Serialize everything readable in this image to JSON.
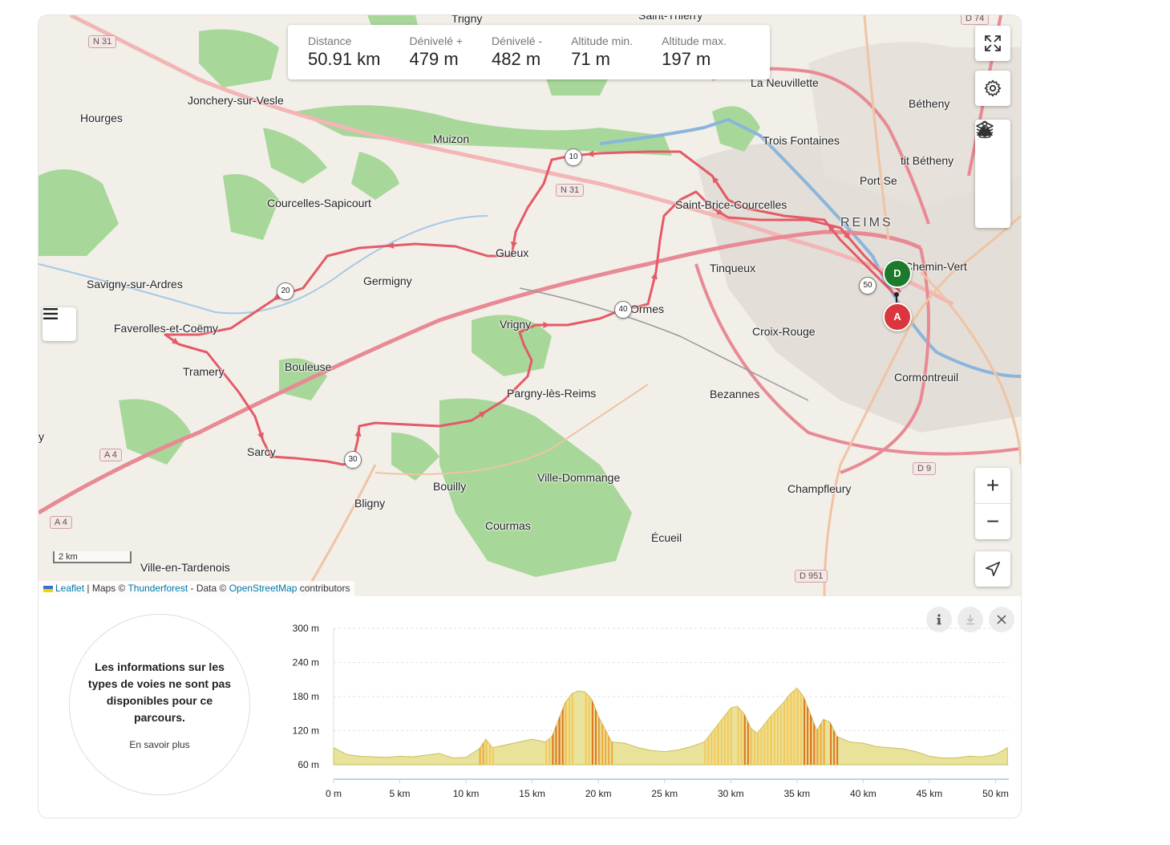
{
  "stats": [
    {
      "label": "Distance",
      "value": "50.91 km"
    },
    {
      "label": "Dénivelé +",
      "value": "479 m"
    },
    {
      "label": "Dénivelé -",
      "value": "482 m"
    },
    {
      "label": "Altitude min.",
      "value": "71 m"
    },
    {
      "label": "Altitude max.",
      "value": "197 m"
    }
  ],
  "map": {
    "places": [
      {
        "name": "Trigny"
      },
      {
        "name": "Saint-Thierry"
      },
      {
        "name": "Jonchery-sur-Vesle"
      },
      {
        "name": "Hourges"
      },
      {
        "name": "Muizon"
      },
      {
        "name": "La Neuvillette"
      },
      {
        "name": "Bétheny"
      },
      {
        "name": "Trois Fontaines"
      },
      {
        "name": "tit Bétheny"
      },
      {
        "name": "Port Se"
      },
      {
        "name": "Courcelles-Sapicourt"
      },
      {
        "name": "Saint-Brice-Courcelles"
      },
      {
        "name": "REIMS"
      },
      {
        "name": "Gueux"
      },
      {
        "name": "Tinqueux"
      },
      {
        "name": "Chemin-Vert"
      },
      {
        "name": "Germigny"
      },
      {
        "name": "Savigny-sur-Ardres"
      },
      {
        "name": "Ormes"
      },
      {
        "name": "Faverolles-et-Coëmy"
      },
      {
        "name": "Vrigny"
      },
      {
        "name": "Croix-Rouge"
      },
      {
        "name": "Tramery"
      },
      {
        "name": "Bouleuse"
      },
      {
        "name": "Cormontreuil"
      },
      {
        "name": "Pargny-lès-Reims"
      },
      {
        "name": "Bezannes"
      },
      {
        "name": "Sarcy"
      },
      {
        "name": "Bouilly"
      },
      {
        "name": "Ville-Dommange"
      },
      {
        "name": "Champfleury"
      },
      {
        "name": "Bligny"
      },
      {
        "name": "Courmas"
      },
      {
        "name": "Écueil"
      },
      {
        "name": "Ville-en-Tardenois"
      },
      {
        "name": "y"
      }
    ],
    "roads": [
      "N 31",
      "N 31",
      "A 4",
      "A 4",
      "D 9",
      "D 951",
      "D 74"
    ],
    "km_markers": [
      "10",
      "20",
      "30",
      "40",
      "50"
    ],
    "start_pin": "D",
    "end_pin": "A",
    "scale": "2 km",
    "attribution": {
      "leaflet": "Leaflet",
      "sep1": " | Maps © ",
      "thunderforest": "Thunderforest",
      "sep2": " - Data © ",
      "osm": "OpenStreetMap",
      "suffix": " contributors"
    }
  },
  "controls": {
    "fullscreen": "fullscreen-icon",
    "settings": "gear-icon",
    "layers": "layers-icon",
    "terrain": "mountain-icon",
    "streetview": "pegman-icon",
    "zoom_in": "+",
    "zoom_out": "−",
    "locate": "locate-icon",
    "menu": "menu-icon"
  },
  "surface_info": {
    "text": "Les informations sur les types de voies ne sont pas disponibles pour ce parcours.",
    "link": "En savoir plus"
  },
  "chart_data": {
    "type": "area",
    "x_unit": "km",
    "y_unit": "m",
    "ylim": [
      60,
      300
    ],
    "xlim": [
      0,
      51
    ],
    "yticks": [
      "300 m",
      "240 m",
      "180 m",
      "120 m",
      "60 m"
    ],
    "xticks": [
      "0 m",
      "5 km",
      "10 km",
      "15 km",
      "20 km",
      "25 km",
      "30 km",
      "35 km",
      "40 km",
      "45 km",
      "50 km"
    ],
    "ytick_values": [
      300,
      240,
      180,
      120,
      60
    ],
    "xtick_values": [
      0,
      5,
      10,
      15,
      20,
      25,
      30,
      35,
      40,
      45,
      50
    ],
    "x": [
      0,
      1,
      2,
      3,
      4,
      5,
      6,
      7,
      8,
      9,
      10,
      11,
      11.5,
      12,
      13,
      14,
      15,
      16,
      16.5,
      17,
      17.5,
      18,
      18.5,
      19,
      19.5,
      20,
      21,
      22,
      23,
      24,
      25,
      26,
      27,
      28,
      29,
      30,
      30.5,
      31,
      31.5,
      32,
      33,
      34,
      34.5,
      35,
      35.5,
      36,
      36.5,
      37,
      37.5,
      38,
      39,
      40,
      41,
      42,
      43,
      44,
      45,
      46,
      47,
      48,
      49,
      50,
      50.9
    ],
    "y": [
      90,
      78,
      75,
      74,
      73,
      75,
      74,
      77,
      80,
      72,
      73,
      88,
      105,
      90,
      95,
      100,
      105,
      100,
      110,
      140,
      170,
      185,
      190,
      188,
      175,
      145,
      100,
      98,
      90,
      85,
      83,
      86,
      92,
      100,
      130,
      160,
      163,
      150,
      125,
      115,
      145,
      170,
      185,
      195,
      180,
      150,
      120,
      140,
      135,
      110,
      100,
      98,
      92,
      90,
      88,
      83,
      75,
      72,
      72,
      75,
      74,
      78,
      90
    ]
  }
}
